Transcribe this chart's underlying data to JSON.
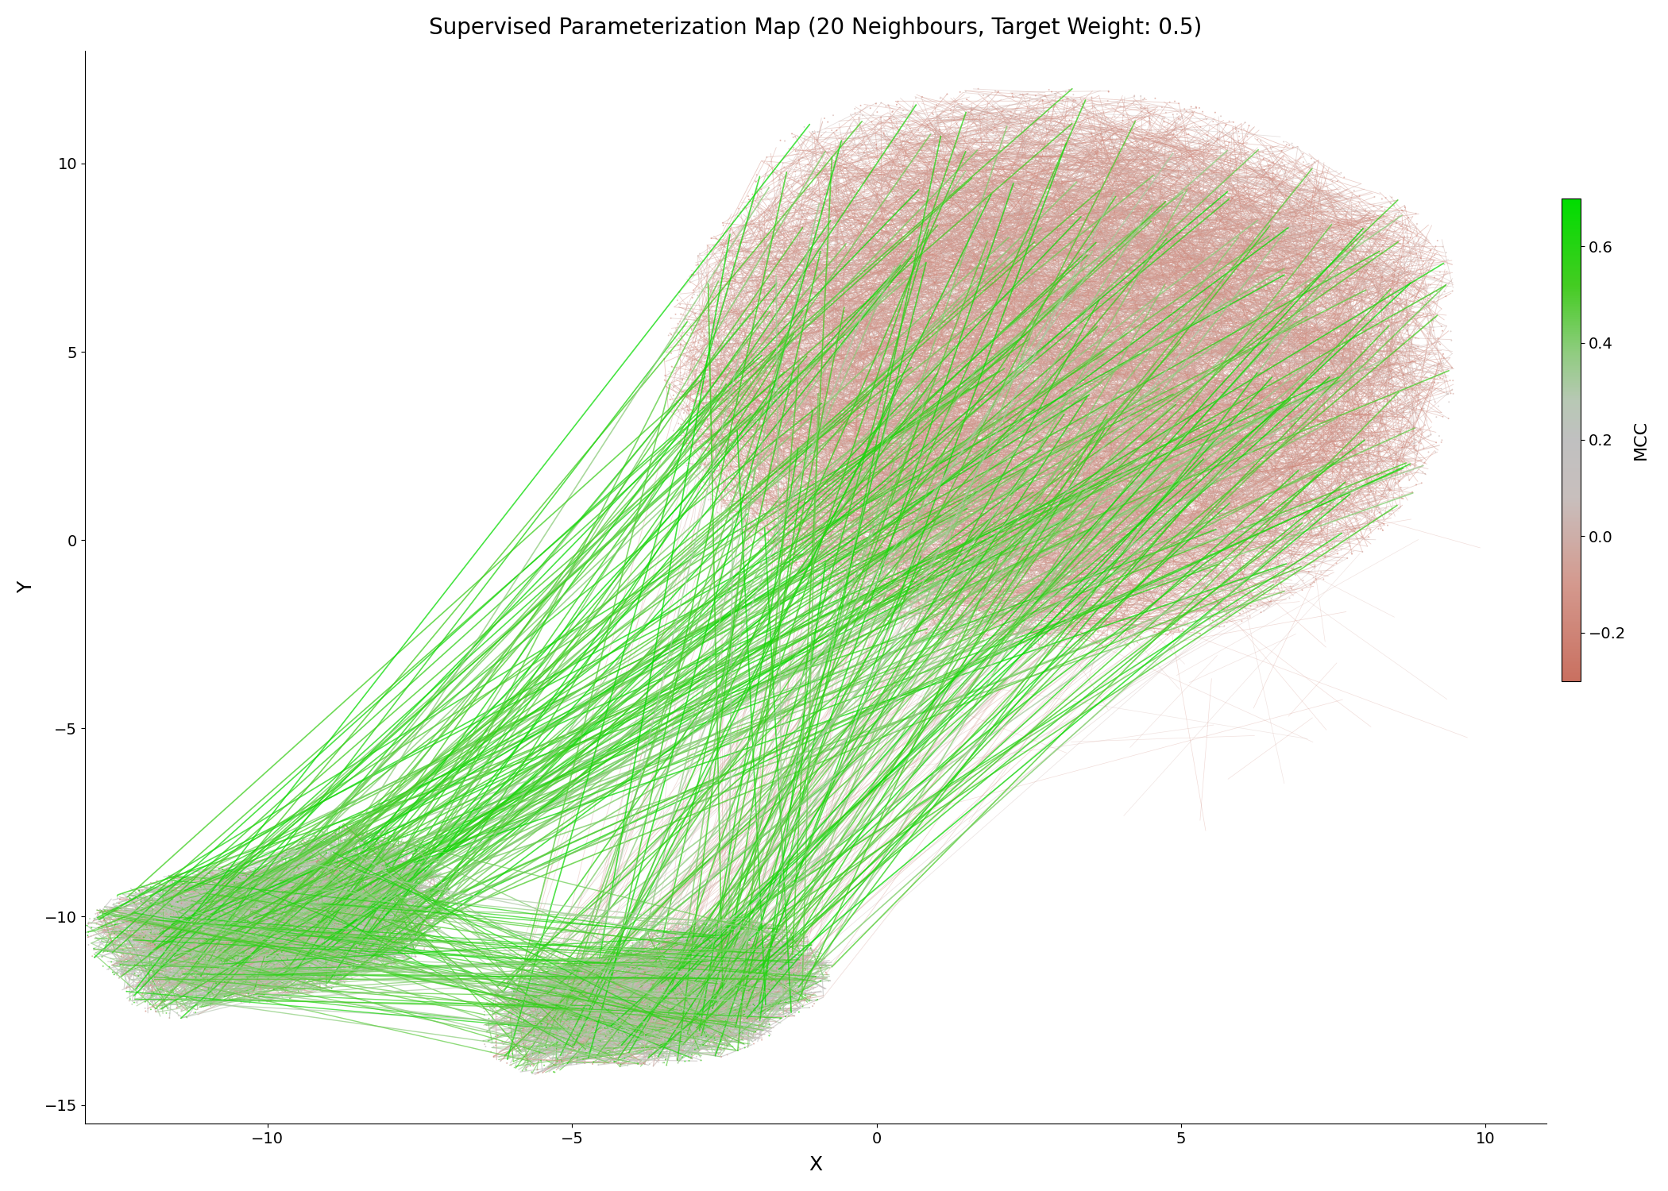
{
  "title": "Supervised Parameterization Map (20 Neighbours, Target Weight: 0.5)",
  "xlabel": "X",
  "ylabel": "Y",
  "xlim": [
    -13,
    11
  ],
  "ylim": [
    -15.5,
    13
  ],
  "xticks": [
    -10,
    -5,
    0,
    5,
    10
  ],
  "yticks": [
    -15,
    -10,
    -5,
    0,
    5,
    10
  ],
  "colorbar_label": "MCC",
  "colorbar_ticks": [
    0.6,
    0.4,
    0.2,
    0.0,
    -0.2
  ],
  "vmin": -0.3,
  "vmax": 0.7,
  "background_color": "#ffffff",
  "title_fontsize": 20,
  "axis_label_fontsize": 18,
  "tick_fontsize": 14,
  "colorbar_label_fontsize": 16,
  "colorbar_tick_fontsize": 14
}
